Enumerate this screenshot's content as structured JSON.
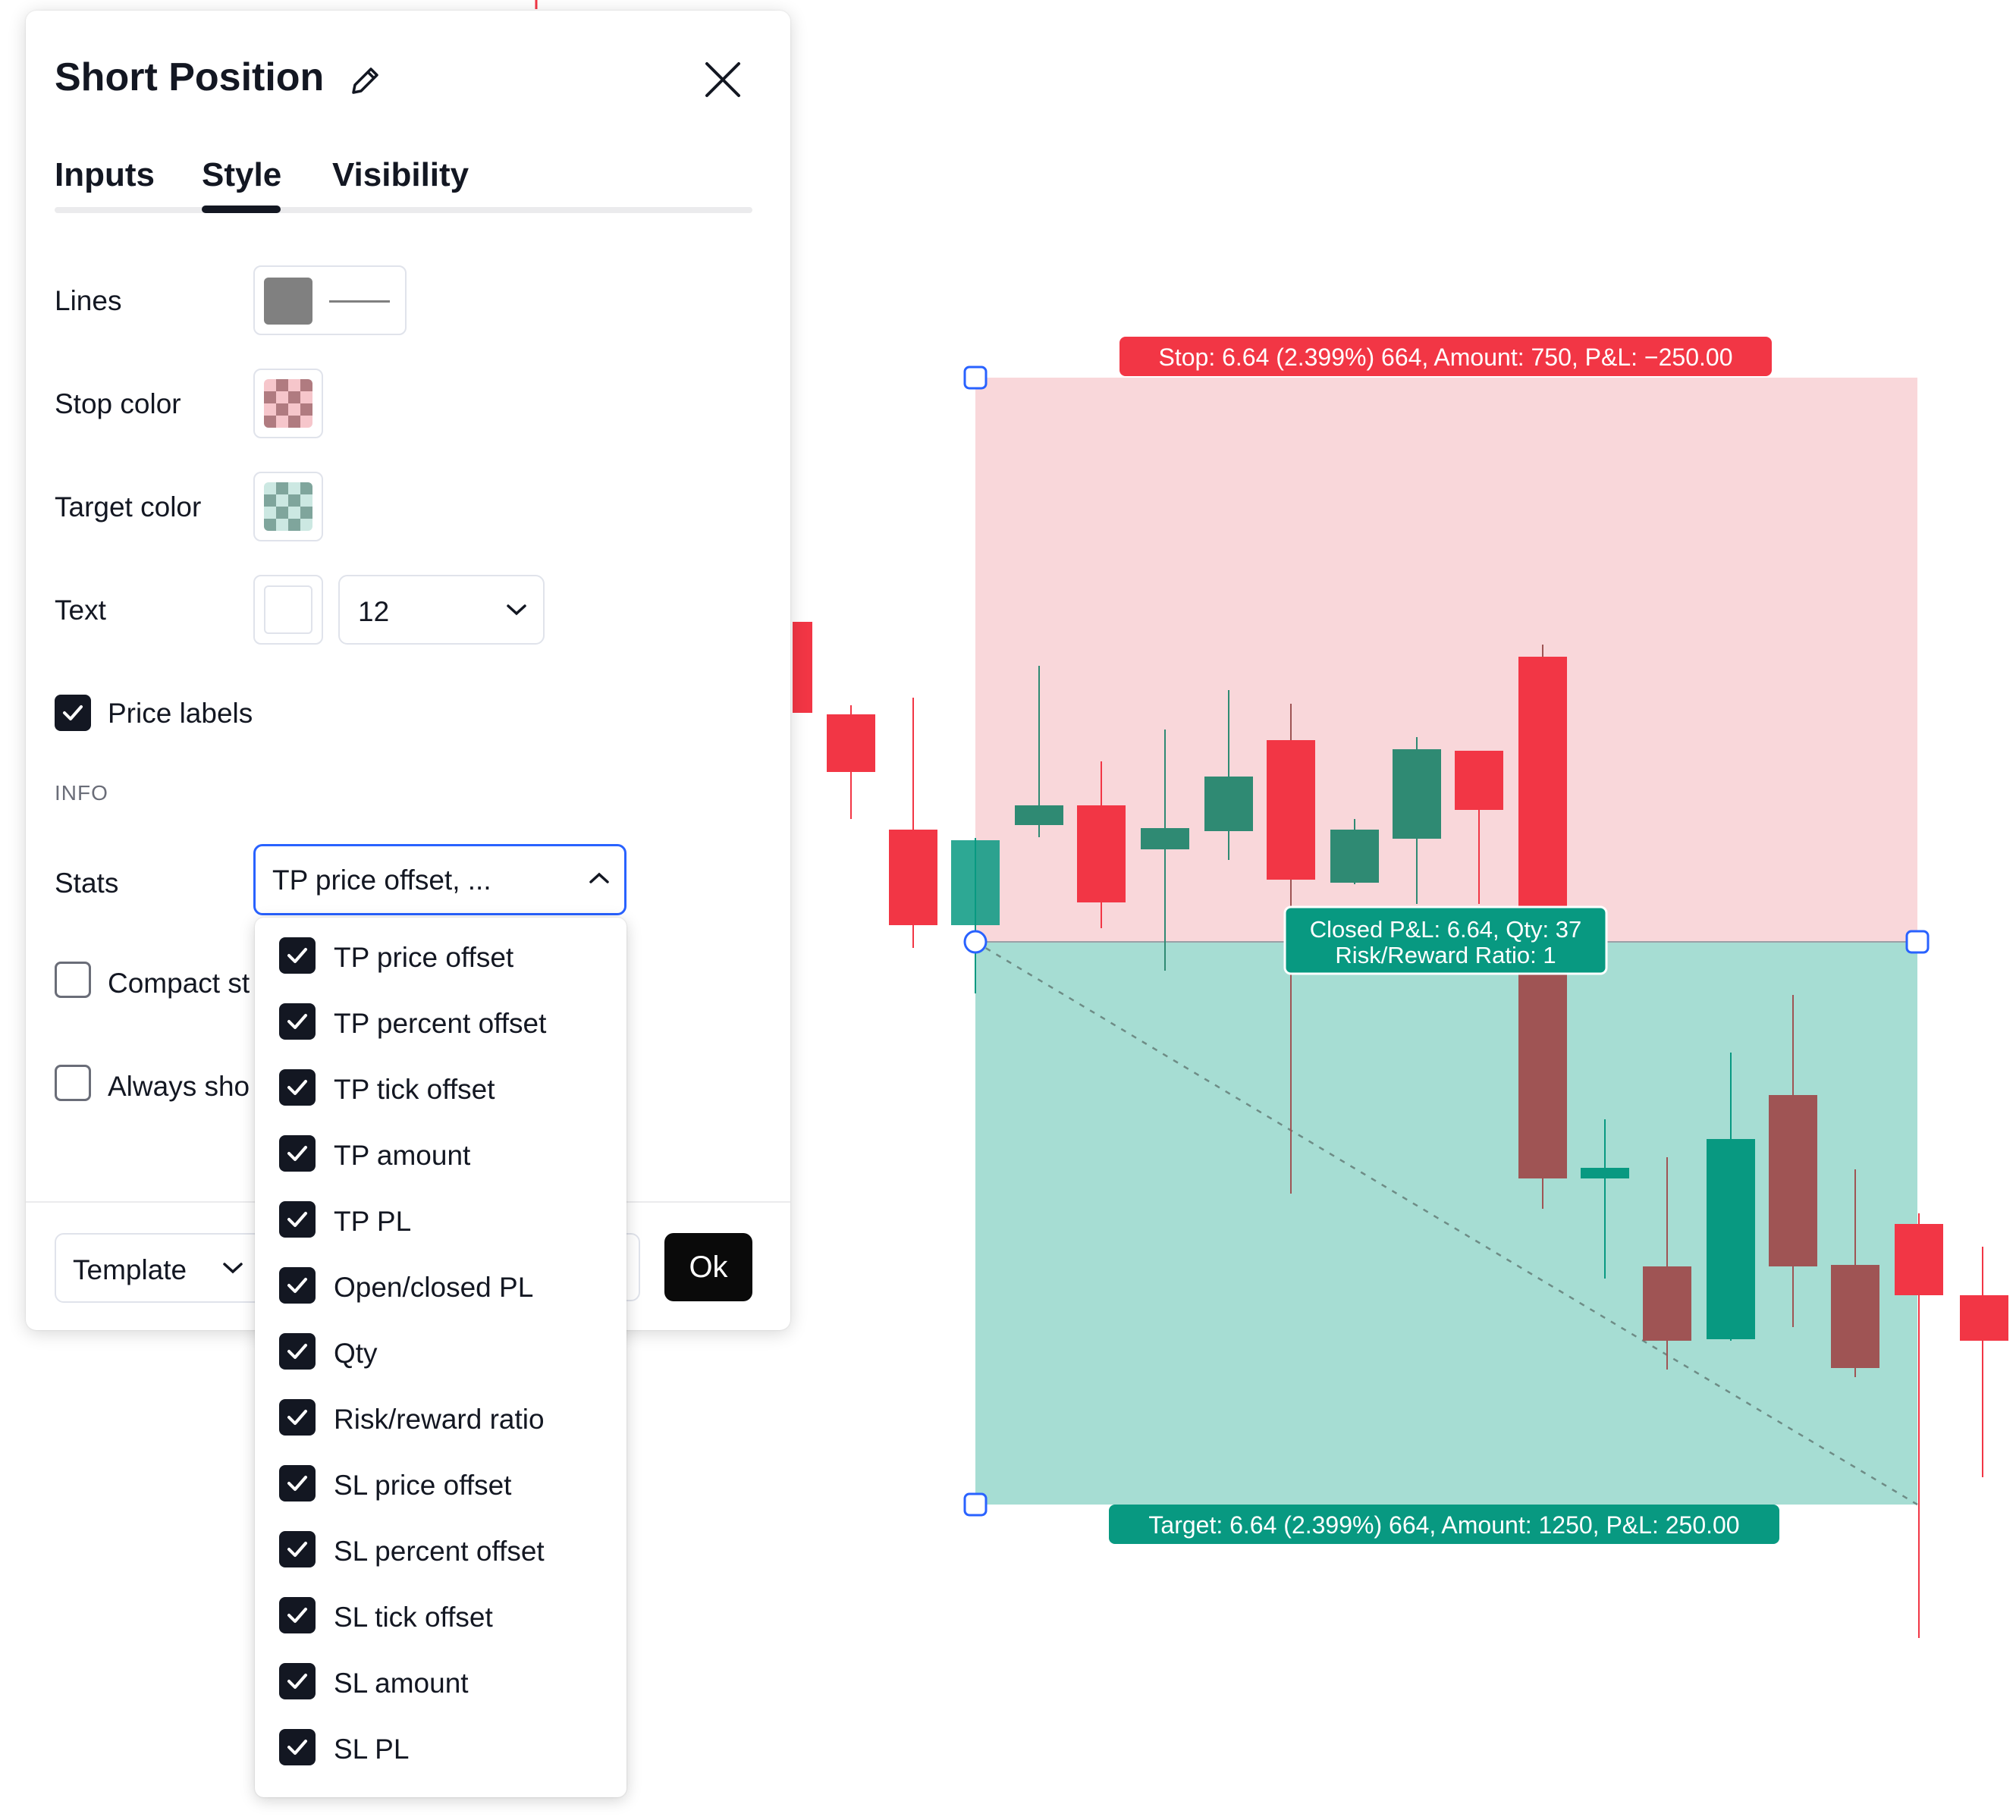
{
  "dialog": {
    "title": "Short Position",
    "tabs": [
      "Inputs",
      "Style",
      "Visibility"
    ],
    "active_tab": "Style",
    "lines_label": "Lines",
    "stop_color_label": "Stop color",
    "target_color_label": "Target color",
    "text_label": "Text",
    "font_size": "12",
    "price_labels": {
      "label": "Price labels",
      "checked": true
    },
    "info_section": "INFO",
    "stats_label": "Stats",
    "stats_value": "TP price offset, ...",
    "compact_label": "Compact st",
    "always_show_label": "Always sho",
    "template_label": "Template",
    "ok_label": "Ok",
    "colors": {
      "line": "#808080",
      "stop": "#f23645",
      "target": "#089981",
      "accent": "#2962ff"
    }
  },
  "stats_options": [
    {
      "label": "TP price offset",
      "checked": true
    },
    {
      "label": "TP percent offset",
      "checked": true
    },
    {
      "label": "TP tick offset",
      "checked": true
    },
    {
      "label": "TP amount",
      "checked": true
    },
    {
      "label": "TP PL",
      "checked": true
    },
    {
      "label": "Open/closed PL",
      "checked": true
    },
    {
      "label": "Qty",
      "checked": true
    },
    {
      "label": "Risk/reward ratio",
      "checked": true
    },
    {
      "label": "SL price offset",
      "checked": true
    },
    {
      "label": "SL percent offset",
      "checked": true
    },
    {
      "label": "SL tick offset",
      "checked": true
    },
    {
      "label": "SL amount",
      "checked": true
    },
    {
      "label": "SL PL",
      "checked": true
    }
  ],
  "chart": {
    "stop_label": "Stop: 6.64 (2.399%) 664, Amount: 750, P&L: −250.00",
    "center_label_line1": "Closed P&L: 6.64, Qty: 37",
    "center_label_line2": "Risk/Reward Ratio: 1",
    "target_label": "Target: 6.64 (2.399%) 664, Amount: 1250, P&L: 250.00",
    "up_color": "#089981",
    "down_color": "#f23645"
  }
}
